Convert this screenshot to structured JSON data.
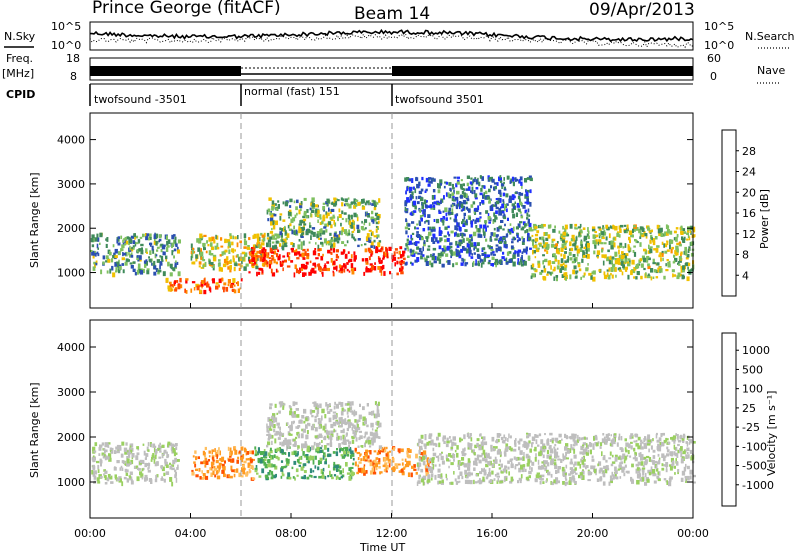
{
  "header": {
    "station": "Prince George (fitACF)",
    "beam": "Beam 14",
    "date": "09/Apr/2013"
  },
  "top_panels": {
    "nsky_label": "N.Sky",
    "nsearch_label": "N.Search",
    "nsky_ticks": [
      "10^5",
      "10^0"
    ],
    "nsearch_ticks": [
      "10^5",
      "10^0"
    ],
    "freq_label_1": "Freq.",
    "freq_label_2": "[MHz]",
    "freq_ticks": [
      "18",
      "8"
    ],
    "nave_label": "Nave",
    "nave_ticks": [
      "60",
      "0"
    ],
    "cpid_label": "CPID",
    "cpid_segments": [
      {
        "label": "twofsound -3501",
        "start_h": 0,
        "end_h": 6
      },
      {
        "label": "normal (fast) 151",
        "start_h": 6,
        "end_h": 12
      },
      {
        "label": "twofsound 3501",
        "start_h": 12,
        "end_h": 24
      }
    ]
  },
  "colors": {
    "power": [
      "#1f2fff",
      "#2a4fb0",
      "#3f8a5a",
      "#7fc060",
      "#f0c000",
      "#ff8a00",
      "#ff4a00",
      "#ff0000"
    ],
    "velocity": [
      "#e00000",
      "#ff5000",
      "#ff9a20",
      "#ffc060",
      "#bebebe",
      "#9ad060",
      "#50b050",
      "#2f8a7a",
      "#2040c0"
    ]
  },
  "chart_data": [
    {
      "type": "heatmap",
      "title": "Power",
      "xlabel": "",
      "ylabel": "Slant Range [km]",
      "xlim": [
        0,
        24
      ],
      "ylim": [
        200,
        4600
      ],
      "yticks": [
        "1000",
        "2000",
        "3000",
        "4000"
      ],
      "colorbar_label": "Power [dB]",
      "colorbar_ticks": [
        "4",
        "8",
        "12",
        "16",
        "20",
        "24",
        "28"
      ],
      "regions": [
        {
          "x0": 0.0,
          "x1": 3.5,
          "y0": 1000,
          "y1": 1900,
          "value": 10
        },
        {
          "x0": 3.0,
          "x1": 6.0,
          "y0": 600,
          "y1": 900,
          "value": 26
        },
        {
          "x0": 4.0,
          "x1": 7.0,
          "y0": 1100,
          "y1": 1900,
          "value": 16
        },
        {
          "x0": 6.3,
          "x1": 10.5,
          "y0": 1000,
          "y1": 1600,
          "value": 30
        },
        {
          "x0": 10.8,
          "x1": 12.5,
          "y0": 1000,
          "y1": 1600,
          "value": 30
        },
        {
          "x0": 7.0,
          "x1": 11.5,
          "y0": 1600,
          "y1": 2700,
          "value": 12
        },
        {
          "x0": 12.5,
          "x1": 17.5,
          "y0": 1200,
          "y1": 3200,
          "value": 6
        },
        {
          "x0": 17.5,
          "x1": 24.0,
          "y0": 900,
          "y1": 2100,
          "value": 14
        }
      ]
    },
    {
      "type": "heatmap",
      "title": "Velocity",
      "xlabel": "Time UT",
      "ylabel": "Slant Range [km]",
      "xlim": [
        0,
        24
      ],
      "ylim": [
        200,
        4600
      ],
      "yticks": [
        "1000",
        "2000",
        "3000",
        "4000"
      ],
      "xticks": [
        "00:00",
        "04:00",
        "08:00",
        "12:00",
        "16:00",
        "20:00",
        "00:00"
      ],
      "colorbar_label": "Velocity [m s⁻¹]",
      "colorbar_ticks": [
        "1000",
        "500",
        "100",
        "25",
        "-25",
        "-100",
        "-500",
        "-1000"
      ],
      "regions": [
        {
          "x0": 0.0,
          "x1": 3.5,
          "y0": 1000,
          "y1": 1900,
          "value": 0
        },
        {
          "x0": 4.0,
          "x1": 6.5,
          "y0": 1100,
          "y1": 1800,
          "value": -300
        },
        {
          "x0": 6.5,
          "x1": 10.5,
          "y0": 1100,
          "y1": 1800,
          "value": 300
        },
        {
          "x0": 10.5,
          "x1": 13.5,
          "y0": 1200,
          "y1": 1800,
          "value": -300
        },
        {
          "x0": 7.0,
          "x1": 11.5,
          "y0": 1800,
          "y1": 2800,
          "value": 0
        },
        {
          "x0": 13.0,
          "x1": 24.0,
          "y0": 1000,
          "y1": 2100,
          "value": 0
        }
      ]
    }
  ]
}
